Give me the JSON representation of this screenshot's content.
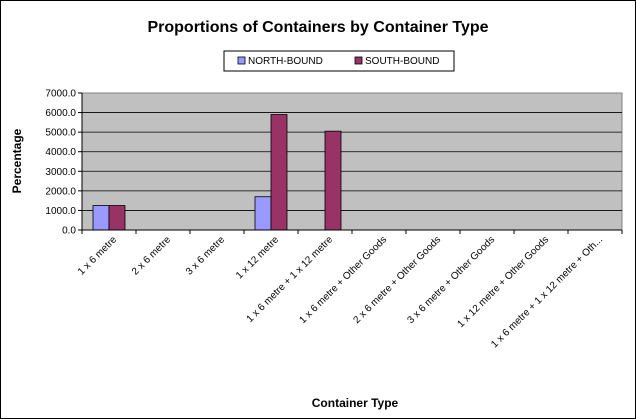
{
  "chart_data": {
    "type": "bar",
    "title": "Proportions of Containers by Container Type",
    "xlabel": "Container Type",
    "ylabel": "Percentage",
    "ylim": [
      0,
      7000
    ],
    "yticks": [
      "0.0",
      "1000.0",
      "2000.0",
      "3000.0",
      "4000.0",
      "5000.0",
      "6000.0",
      "7000.0"
    ],
    "categories": [
      "1 x 6 metre",
      "2 x 6 metre",
      "3 x 6 metre",
      "1 x 12 metre",
      "1 x 6 metre + 1 x 12 metre",
      "1 x 6 metre + Other Goods",
      "2 x 6 metre + Other Goods",
      "3 x 6 metre + Other Goods",
      "1 x 12 metre + Other Goods",
      "1 x 6 metre + 1 x 12 metre + Oth..."
    ],
    "series": [
      {
        "name": "NORTH-BOUND",
        "color": "#9999ff",
        "values": [
          1250,
          0,
          0,
          1700,
          0,
          0,
          0,
          0,
          0,
          0
        ]
      },
      {
        "name": "SOUTH-BOUND",
        "color": "#993366",
        "values": [
          1250,
          0,
          0,
          5900,
          5050,
          0,
          0,
          0,
          0,
          0
        ]
      }
    ],
    "grid": true,
    "legend_position": "top"
  }
}
